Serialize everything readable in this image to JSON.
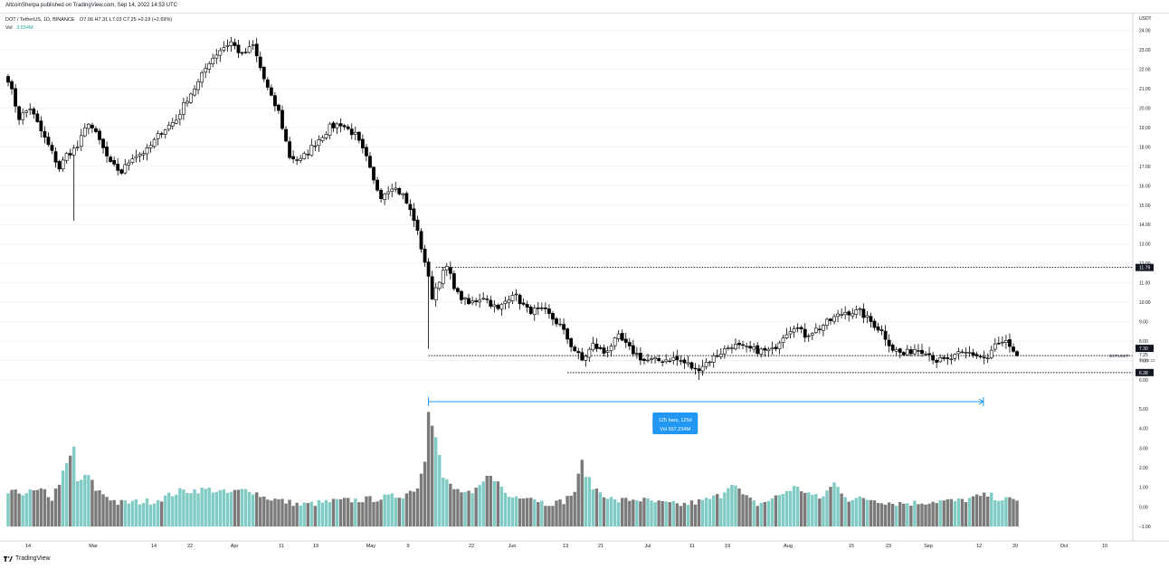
{
  "header": {
    "publish_line": "AltcoinSherpa published on TradingView.com, Sep 14, 2022 14:53 UTC"
  },
  "legend": {
    "symbol": "DOT / TetherUS, 1D, BINANCE",
    "ohlc": "O7.06 H7.31 L7.03 C7.25 +0.19 (+2.69%)",
    "volume_label": "Vol",
    "volume_value": "3.554M"
  },
  "footer": {
    "brand": "TradingView"
  },
  "colors": {
    "down": "#000000",
    "up": "#ffffff",
    "vol_up": "#80cbc4",
    "vol_down": "#7a7a7a",
    "measure": "#2196f3",
    "grid": "#f0f3fa",
    "axis_text": "#131722"
  },
  "chart_data": {
    "type": "candlestick",
    "currency": "USDT",
    "price_axis": {
      "min": 6.0,
      "max": 24.0,
      "ticks": [
        "6.00",
        "7.00",
        "8.00",
        "9.00",
        "10.00",
        "11.00",
        "12.00",
        "13.00",
        "14.00",
        "15.00",
        "16.00",
        "17.00",
        "18.00",
        "19.00",
        "20.00",
        "21.00",
        "22.00",
        "23.00",
        "24.00"
      ]
    },
    "volume_axis": {
      "min": -1.0,
      "max": 5.0,
      "ticks": [
        "−1.00",
        "0.00",
        "1.00",
        "2.00",
        "3.00",
        "4.00",
        "5.00"
      ]
    },
    "x_ticks": [
      "14",
      "Mar",
      "14",
      "22",
      "Apr",
      "11",
      "19",
      "May",
      "9",
      "22",
      "Jun",
      "13",
      "21",
      "Jul",
      "11",
      "19",
      "Aug",
      "15",
      "23",
      "Sep",
      "12",
      "20",
      "Oct",
      "10"
    ],
    "price_labels": [
      {
        "text": "11.79",
        "value": 11.79
      },
      {
        "text": "7.30",
        "value": 7.3
      },
      {
        "text": "7.25",
        "value": 7.25,
        "caption": "09:06:22"
      },
      {
        "text": "6.38",
        "value": 6.38
      }
    ],
    "symbol_line_label": "DOTUSDT",
    "horizontal_lines": [
      11.79,
      7.25,
      6.38
    ],
    "measure": {
      "line1": "125 bars, 125d",
      "line2": "Vol 937.234M"
    },
    "keypoints": [
      [
        0,
        21.5
      ],
      [
        3,
        19.5
      ],
      [
        6,
        20.0
      ],
      [
        9,
        18.8
      ],
      [
        12,
        17.7
      ],
      [
        14,
        16.9
      ],
      [
        16,
        17.6
      ],
      [
        19,
        18.0
      ],
      [
        22,
        19.3
      ],
      [
        25,
        18.3
      ],
      [
        28,
        17.1
      ],
      [
        31,
        16.7
      ],
      [
        34,
        17.5
      ],
      [
        38,
        17.8
      ],
      [
        42,
        18.8
      ],
      [
        46,
        19.4
      ],
      [
        49,
        20.5
      ],
      [
        52,
        21.3
      ],
      [
        55,
        22.4
      ],
      [
        58,
        23.0
      ],
      [
        61,
        23.4
      ],
      [
        64,
        22.7
      ],
      [
        67,
        23.2
      ],
      [
        70,
        21.5
      ],
      [
        72,
        20.5
      ],
      [
        74,
        19.8
      ],
      [
        77,
        17.5
      ],
      [
        80,
        17.3
      ],
      [
        84,
        18.2
      ],
      [
        88,
        19.0
      ],
      [
        91,
        19.2
      ],
      [
        95,
        18.6
      ],
      [
        98,
        17.4
      ],
      [
        100,
        16.2
      ],
      [
        102,
        15.5
      ],
      [
        105,
        16.0
      ],
      [
        108,
        15.5
      ],
      [
        111,
        14.3
      ],
      [
        114,
        12.1
      ],
      [
        116,
        10.3
      ],
      [
        118,
        11.2
      ],
      [
        120,
        11.8
      ],
      [
        123,
        10.4
      ],
      [
        126,
        9.9
      ],
      [
        130,
        10.3
      ],
      [
        134,
        9.6
      ],
      [
        138,
        10.5
      ],
      [
        142,
        9.6
      ],
      [
        147,
        9.5
      ],
      [
        151,
        8.8
      ],
      [
        154,
        7.8
      ],
      [
        157,
        7.0
      ],
      [
        160,
        7.8
      ],
      [
        163,
        7.4
      ],
      [
        167,
        8.2
      ],
      [
        170,
        7.6
      ],
      [
        174,
        7.0
      ],
      [
        178,
        7.0
      ],
      [
        182,
        7.1
      ],
      [
        186,
        6.8
      ],
      [
        188,
        6.5
      ],
      [
        191,
        6.9
      ],
      [
        194,
        7.3
      ],
      [
        198,
        7.8
      ],
      [
        202,
        7.6
      ],
      [
        206,
        7.5
      ],
      [
        209,
        7.5
      ],
      [
        212,
        8.3
      ],
      [
        215,
        8.8
      ],
      [
        218,
        8.3
      ],
      [
        222,
        8.7
      ],
      [
        226,
        9.2
      ],
      [
        229,
        9.5
      ],
      [
        233,
        9.5
      ],
      [
        236,
        9.0
      ],
      [
        239,
        8.5
      ],
      [
        242,
        7.6
      ],
      [
        245,
        7.3
      ],
      [
        248,
        7.6
      ],
      [
        251,
        7.5
      ],
      [
        254,
        7.0
      ],
      [
        257,
        7.0
      ],
      [
        260,
        7.3
      ],
      [
        263,
        7.4
      ],
      [
        266,
        7.2
      ],
      [
        268,
        7.1
      ],
      [
        270,
        7.8
      ],
      [
        273,
        7.9
      ],
      [
        275,
        7.3
      ],
      [
        276,
        7.25
      ]
    ],
    "volume_keypoints": [
      [
        0,
        0.7
      ],
      [
        10,
        0.8
      ],
      [
        12,
        0.4
      ],
      [
        18,
        3.0
      ],
      [
        19,
        1.3
      ],
      [
        22,
        1.6
      ],
      [
        24,
        0.9
      ],
      [
        30,
        0.2
      ],
      [
        40,
        0.3
      ],
      [
        47,
        0.8
      ],
      [
        55,
        0.9
      ],
      [
        60,
        0.7
      ],
      [
        66,
        0.9
      ],
      [
        70,
        0.5
      ],
      [
        80,
        0.1
      ],
      [
        90,
        0.3
      ],
      [
        100,
        0.4
      ],
      [
        108,
        0.6
      ],
      [
        112,
        1.0
      ],
      [
        114,
        2.4
      ],
      [
        115,
        5.0
      ],
      [
        116,
        4.3
      ],
      [
        117,
        3.7
      ],
      [
        119,
        1.5
      ],
      [
        122,
        0.9
      ],
      [
        127,
        0.6
      ],
      [
        132,
        1.7
      ],
      [
        137,
        0.5
      ],
      [
        142,
        0.6
      ],
      [
        148,
        0.1
      ],
      [
        152,
        0.3
      ],
      [
        155,
        0.8
      ],
      [
        157,
        2.3
      ],
      [
        158,
        1.7
      ],
      [
        160,
        1.0
      ],
      [
        166,
        0.3
      ],
      [
        172,
        0.4
      ],
      [
        178,
        0.2
      ],
      [
        184,
        0.1
      ],
      [
        190,
        0.3
      ],
      [
        195,
        0.6
      ],
      [
        198,
        1.3
      ],
      [
        201,
        0.6
      ],
      [
        205,
        0.1
      ],
      [
        210,
        0.5
      ],
      [
        215,
        1.0
      ],
      [
        218,
        0.8
      ],
      [
        222,
        0.4
      ],
      [
        226,
        1.2
      ],
      [
        230,
        0.4
      ],
      [
        236,
        0.4
      ],
      [
        242,
        0.2
      ],
      [
        248,
        0.2
      ],
      [
        254,
        0.3
      ],
      [
        260,
        0.3
      ],
      [
        265,
        0.5
      ],
      [
        268,
        0.6
      ],
      [
        272,
        0.4
      ],
      [
        276,
        0.3
      ]
    ],
    "bars": 277
  }
}
